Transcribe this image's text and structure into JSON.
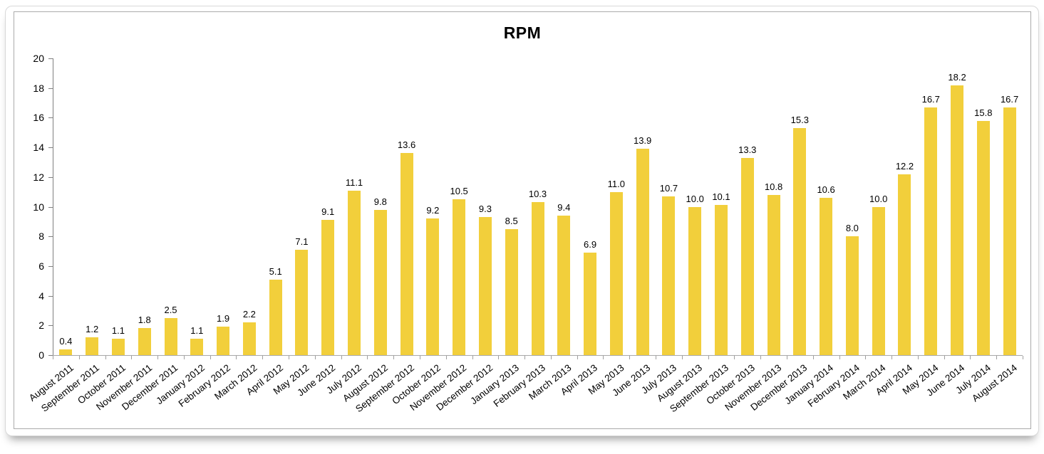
{
  "page": {
    "title": "RPM"
  },
  "chart_data": {
    "type": "bar",
    "title": "RPM",
    "categories": [
      "August 2011",
      "September 2011",
      "October 2011",
      "November 2011",
      "December 2011",
      "January 2012",
      "February 2012",
      "March 2012",
      "April 2012",
      "May 2012",
      "June 2012",
      "July 2012",
      "August 2012",
      "September 2012",
      "October 2012",
      "November 2012",
      "December 2012",
      "January 2013",
      "February 2013",
      "March 2013",
      "April 2013",
      "May 2013",
      "June 2013",
      "July 2013",
      "August 2013",
      "September 2013",
      "October 2013",
      "November 2013",
      "December 2013",
      "January 2014",
      "February 2014",
      "March 2014",
      "April 2014",
      "May 2014",
      "June 2014",
      "July 2014",
      "August 2014"
    ],
    "values": [
      0.4,
      1.2,
      1.1,
      1.8,
      2.5,
      1.1,
      1.9,
      2.2,
      5.1,
      7.1,
      9.1,
      11.1,
      9.8,
      13.6,
      9.2,
      10.5,
      9.3,
      8.5,
      10.3,
      9.4,
      6.9,
      11.0,
      13.9,
      10.7,
      10.0,
      10.1,
      13.3,
      10.8,
      15.3,
      10.6,
      8.0,
      10.0,
      12.2,
      16.7,
      18.2,
      15.8,
      16.7
    ],
    "value_labels": [
      "0.4",
      "1.2",
      "1.1",
      "1.8",
      "2.5",
      "1.1",
      "1.9",
      "2.2",
      "5.1",
      "7.1",
      "9.1",
      "11.1",
      "9.8",
      "13.6",
      "9.2",
      "10.5",
      "9.3",
      "8.5",
      "10.3",
      "9.4",
      "6.9",
      "11.0",
      "13.9",
      "10.7",
      "10.0",
      "10.1",
      "13.3",
      "10.8",
      "15.3",
      "10.6",
      "8.0",
      "10.0",
      "12.2",
      "16.7",
      "18.2",
      "15.8",
      "16.7"
    ],
    "xlabel": "",
    "ylabel": "",
    "ylim": [
      0,
      20
    ],
    "ytick_step": 2,
    "yticks": [
      0,
      2,
      4,
      6,
      8,
      10,
      12,
      14,
      16,
      18,
      20
    ],
    "bar_color": "#F2CF3B",
    "axis_color": "#808080",
    "text_color": "#000000",
    "grid": false,
    "legend": false,
    "label_rotation_deg": -38
  }
}
